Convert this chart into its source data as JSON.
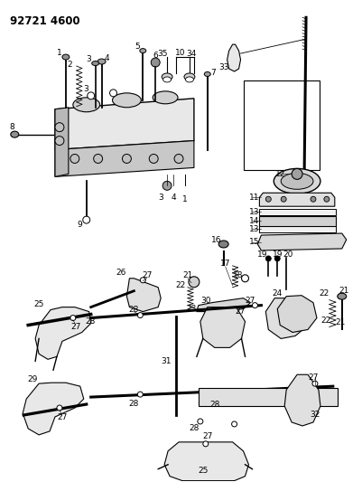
{
  "title": "92721 4600",
  "bg_color": "#ffffff",
  "line_color": "#000000",
  "title_fontsize": 9,
  "label_fontsize": 7,
  "fig_width": 4.01,
  "fig_height": 5.33,
  "dpi": 100
}
